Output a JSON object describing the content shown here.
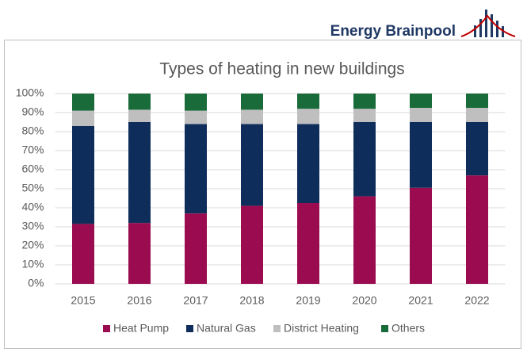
{
  "brand": "Energy Brainpool",
  "chart_data": {
    "type": "stacked-bar",
    "title": "Types of heating in new buildings",
    "categories": [
      "2015",
      "2016",
      "2017",
      "2018",
      "2019",
      "2020",
      "2021",
      "2022"
    ],
    "series": [
      {
        "name": "Heat Pump",
        "color": "#9b0b4f",
        "values": [
          31.5,
          32,
          37,
          41,
          42.5,
          46,
          50.5,
          57
        ]
      },
      {
        "name": "Natural Gas",
        "color": "#0f2d5a",
        "values": [
          51.5,
          53,
          47,
          43,
          41.5,
          39,
          34.5,
          28
        ]
      },
      {
        "name": "District Heating",
        "color": "#bfbfbf",
        "values": [
          8,
          6.5,
          7,
          7.5,
          8,
          7,
          7.5,
          7.5
        ]
      },
      {
        "name": "Others",
        "color": "#1a6b3a",
        "values": [
          9,
          8.5,
          9,
          8.5,
          8,
          8,
          7.5,
          7.5
        ]
      }
    ],
    "ylim": [
      0,
      100
    ],
    "yticks": [
      {
        "value": 0,
        "label": "0%"
      },
      {
        "value": 10,
        "label": "10%"
      },
      {
        "value": 20,
        "label": "20%"
      },
      {
        "value": 30,
        "label": "30%"
      },
      {
        "value": 40,
        "label": "40%"
      },
      {
        "value": 50,
        "label": "50%"
      },
      {
        "value": 60,
        "label": "60%"
      },
      {
        "value": 70,
        "label": "70%"
      },
      {
        "value": 80,
        "label": "80%"
      },
      {
        "value": 90,
        "label": "90%"
      },
      {
        "value": 100,
        "label": "100%"
      }
    ],
    "grid": true,
    "legend": "bottom"
  }
}
